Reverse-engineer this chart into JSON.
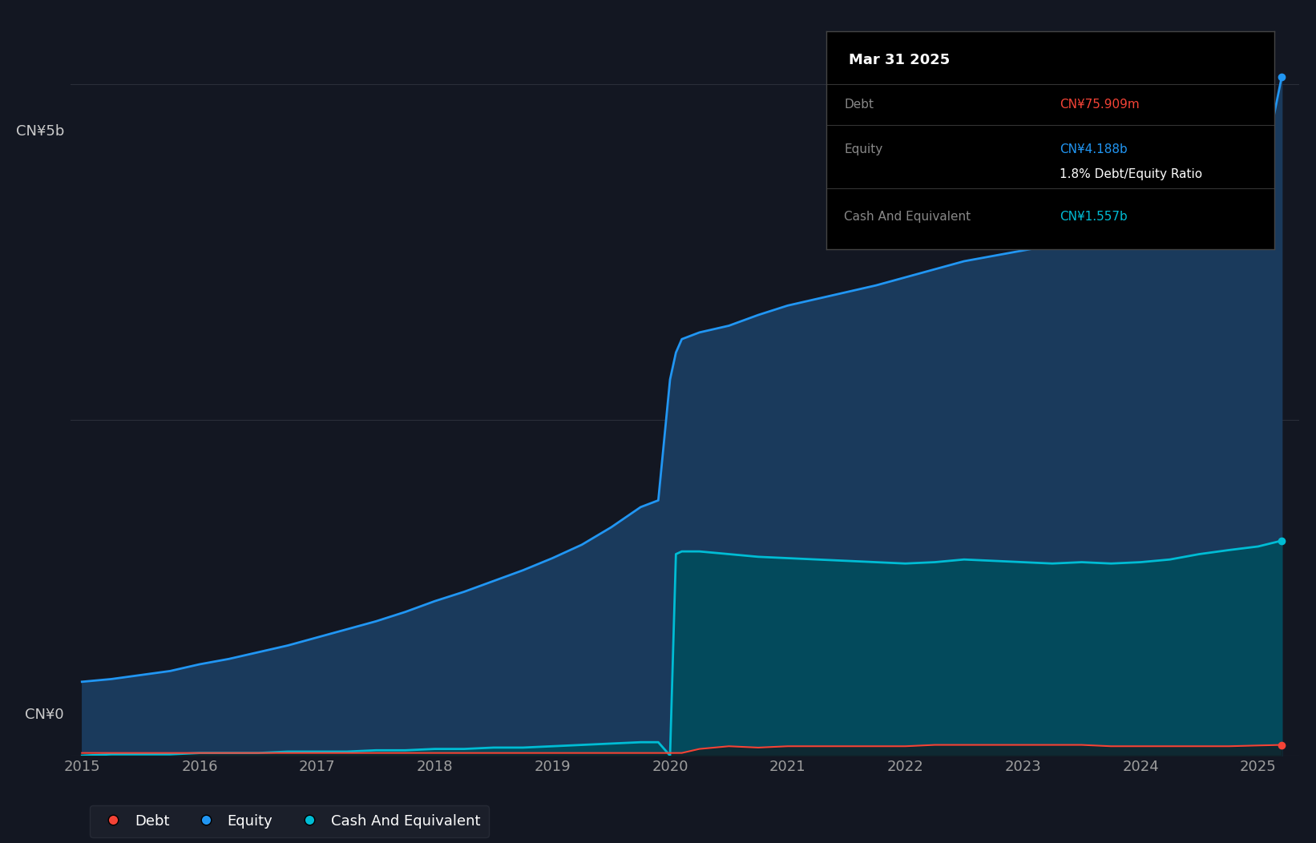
{
  "background_color": "#131722",
  "plot_bg_color": "#131722",
  "grid_color": "#2a2e39",
  "ylabel_top": "CN¥5b",
  "ylabel_bottom": "CN¥0",
  "x_ticks": [
    2015,
    2016,
    2017,
    2018,
    2019,
    2020,
    2021,
    2022,
    2023,
    2024,
    2025
  ],
  "equity_color": "#2196f3",
  "equity_fill": "#1a3a5c",
  "debt_color": "#f44336",
  "cash_color": "#00bcd4",
  "cash_fill": "#004d5c",
  "years": [
    2015.0,
    2015.25,
    2015.5,
    2015.75,
    2016.0,
    2016.25,
    2016.5,
    2016.75,
    2017.0,
    2017.25,
    2017.5,
    2017.75,
    2018.0,
    2018.25,
    2018.5,
    2018.75,
    2019.0,
    2019.25,
    2019.5,
    2019.75,
    2019.9,
    2020.0,
    2020.05,
    2020.1,
    2020.25,
    2020.5,
    2020.75,
    2021.0,
    2021.25,
    2021.5,
    2021.75,
    2022.0,
    2022.25,
    2022.5,
    2022.75,
    2023.0,
    2023.25,
    2023.5,
    2023.75,
    2024.0,
    2024.25,
    2024.5,
    2024.75,
    2025.0,
    2025.2
  ],
  "equity": [
    0.55,
    0.57,
    0.6,
    0.63,
    0.68,
    0.72,
    0.77,
    0.82,
    0.88,
    0.94,
    1.0,
    1.07,
    1.15,
    1.22,
    1.3,
    1.38,
    1.47,
    1.57,
    1.7,
    1.85,
    1.9,
    2.8,
    3.0,
    3.1,
    3.15,
    3.2,
    3.28,
    3.35,
    3.4,
    3.45,
    3.5,
    3.56,
    3.62,
    3.68,
    3.72,
    3.76,
    3.8,
    3.83,
    3.85,
    3.88,
    3.95,
    4.05,
    4.12,
    4.188,
    5.05
  ],
  "cash": [
    0.0,
    0.01,
    0.01,
    0.01,
    0.02,
    0.02,
    0.02,
    0.03,
    0.03,
    0.03,
    0.04,
    0.04,
    0.05,
    0.05,
    0.06,
    0.06,
    0.07,
    0.08,
    0.09,
    0.1,
    0.1,
    0.0,
    1.5,
    1.52,
    1.52,
    1.5,
    1.48,
    1.47,
    1.46,
    1.45,
    1.44,
    1.43,
    1.44,
    1.46,
    1.45,
    1.44,
    1.43,
    1.44,
    1.43,
    1.44,
    1.46,
    1.5,
    1.53,
    1.557,
    1.6
  ],
  "debt": [
    0.02,
    0.02,
    0.02,
    0.02,
    0.02,
    0.02,
    0.02,
    0.02,
    0.02,
    0.02,
    0.02,
    0.02,
    0.02,
    0.02,
    0.02,
    0.02,
    0.02,
    0.02,
    0.02,
    0.02,
    0.02,
    0.02,
    0.02,
    0.02,
    0.05,
    0.07,
    0.06,
    0.07,
    0.07,
    0.07,
    0.07,
    0.07,
    0.08,
    0.08,
    0.08,
    0.08,
    0.08,
    0.08,
    0.07,
    0.07,
    0.07,
    0.07,
    0.07,
    0.07576,
    0.08
  ],
  "ylim": [
    0,
    5.5
  ],
  "xlim": [
    2014.9,
    2025.35
  ],
  "legend_debt_label": "Debt",
  "legend_equity_label": "Equity",
  "legend_cash_label": "Cash And Equivalent",
  "tooltip_title": "Mar 31 2025",
  "tooltip_debt_label": "Debt",
  "tooltip_equity_label": "Equity",
  "tooltip_cash_label": "Cash And Equivalent",
  "tooltip_ratio_label": "1.8% Debt/Equity Ratio",
  "tooltip_debt_val": "CN¥75.909m",
  "tooltip_equity_val": "CN¥4.188b",
  "tooltip_cash_val": "CN¥1.557b",
  "tooltip_debt_color": "#f44336",
  "tooltip_equity_color": "#2196f3",
  "tooltip_cash_color": "#00bcd4"
}
